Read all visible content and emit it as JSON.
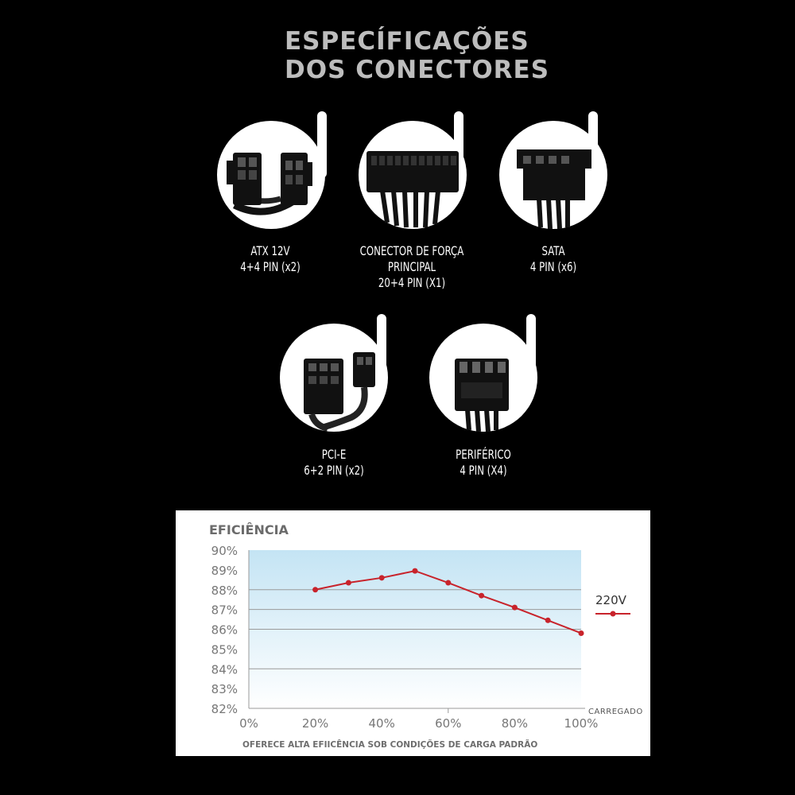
{
  "title": {
    "line1": "ESPECÍFICAÇÕES",
    "line2": "DOS CONECTORES"
  },
  "connectors": [
    {
      "lines": [
        "ATX 12V",
        "4+4 PIN (x2)"
      ]
    },
    {
      "lines": [
        "CONECTOR DE FORÇA",
        "PRINCIPAL",
        "20+4 PIN (X1)"
      ]
    },
    {
      "lines": [
        "SATA",
        "4 PIN (x6)"
      ]
    },
    {
      "lines": [
        "PCI-E",
        "6+2 PIN (x2)"
      ]
    },
    {
      "lines": [
        "PERIFÉRICO",
        "4 PIN (X4)"
      ]
    }
  ],
  "efficiency": {
    "heading": "EFICIÊNCIA",
    "footer": "OFERECE ALTA EFIICÊNCIA SOB CONDIÇÕES DE CARGA PADRÃO",
    "x_axis_label": "CARREGADO",
    "legend_label": "220V",
    "line_color": "#c8232b",
    "grid_color": "#9a9a9a"
  },
  "chart_data": {
    "type": "line",
    "ylabel": "EFICIÊNCIA",
    "xlabel": "CARREGADO",
    "x_ticks": [
      "0%",
      "20%",
      "40%",
      "60%",
      "80%",
      "100%"
    ],
    "y_ticks": [
      "90%",
      "89%",
      "88%",
      "87%",
      "86%",
      "85%",
      "84%",
      "83%",
      "82%"
    ],
    "xlim": [
      0,
      100
    ],
    "ylim": [
      82,
      90
    ],
    "legend_position": "right",
    "series": [
      {
        "name": "220V",
        "x": [
          20,
          30,
          40,
          50,
          60,
          70,
          80,
          90,
          100
        ],
        "y": [
          88.0,
          88.35,
          88.6,
          88.95,
          88.35,
          87.7,
          87.1,
          86.45,
          85.8
        ]
      }
    ]
  }
}
